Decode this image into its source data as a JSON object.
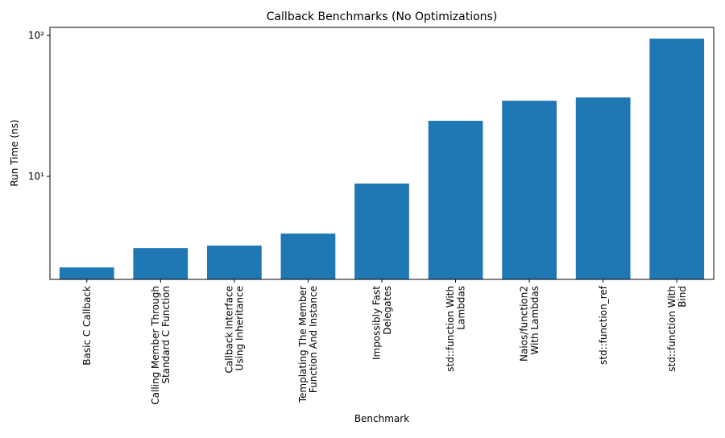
{
  "chart_data": {
    "type": "bar",
    "title": "Callback Benchmarks (No Optimizations)",
    "x_label": "Benchmark",
    "y_label": "Run Time (ns)",
    "categories": [
      "Basic C Callback",
      "Calling Member Through\nStandard C Function",
      "Callback Interface\nUsing Inheritance",
      "Templating The Member\nFunction And Instance",
      "Impossibly Fast\nDelegates",
      "std::function With\nLambdas",
      "Naios/function2\nWith Lambdas",
      "std::function_ref",
      "std::function With\nBind"
    ],
    "values": [
      2.26,
      3.1,
      3.23,
      3.93,
      8.9,
      24.8,
      34.4,
      36.3,
      94.9
    ],
    "color": "#1f77b4",
    "log_y": true,
    "ylim": [
      1.86,
      114
    ],
    "yticks": [
      {
        "value": 10,
        "label": "10¹"
      },
      {
        "value": 100,
        "label": "10²"
      }
    ]
  }
}
